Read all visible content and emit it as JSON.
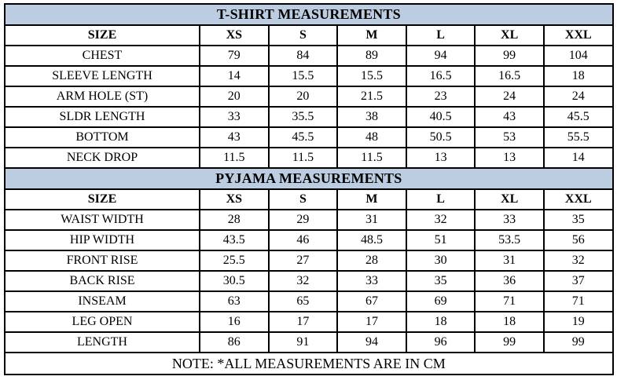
{
  "colors": {
    "header_bg": "#bccde2",
    "border": "#000000",
    "text": "#000000",
    "page_bg": "#ffffff"
  },
  "sections": [
    {
      "title": "T-SHIRT MEASUREMENTS",
      "size_header": [
        "SIZE",
        "XS",
        "S",
        "M",
        "L",
        "XL",
        "XXL"
      ],
      "rows": [
        {
          "label": "CHEST",
          "values": [
            "79",
            "84",
            "89",
            "94",
            "99",
            "104"
          ]
        },
        {
          "label": "SLEEVE LENGTH",
          "values": [
            "14",
            "15.5",
            "15.5",
            "16.5",
            "16.5",
            "18"
          ]
        },
        {
          "label": "ARM HOLE (ST)",
          "values": [
            "20",
            "20",
            "21.5",
            "23",
            "24",
            "24"
          ]
        },
        {
          "label": "SLDR LENGTH",
          "values": [
            "33",
            "35.5",
            "38",
            "40.5",
            "43",
            "45.5"
          ]
        },
        {
          "label": "BOTTOM",
          "values": [
            "43",
            "45.5",
            "48",
            "50.5",
            "53",
            "55.5"
          ]
        },
        {
          "label": "NECK DROP",
          "values": [
            "11.5",
            "11.5",
            "11.5",
            "13",
            "13",
            "14"
          ]
        }
      ]
    },
    {
      "title": "PYJAMA MEASUREMENTS",
      "size_header": [
        "SIZE",
        "XS",
        "S",
        "M",
        "L",
        "XL",
        "XXL"
      ],
      "rows": [
        {
          "label": "WAIST WIDTH",
          "values": [
            "28",
            "29",
            "31",
            "32",
            "33",
            "35"
          ]
        },
        {
          "label": "HIP WIDTH",
          "values": [
            "43.5",
            "46",
            "48.5",
            "51",
            "53.5",
            "56"
          ]
        },
        {
          "label": "FRONT RISE",
          "values": [
            "25.5",
            "27",
            "28",
            "30",
            "31",
            "32"
          ]
        },
        {
          "label": "BACK RISE",
          "values": [
            "30.5",
            "32",
            "33",
            "35",
            "36",
            "37"
          ]
        },
        {
          "label": "INSEAM",
          "values": [
            "63",
            "65",
            "67",
            "69",
            "71",
            "71"
          ]
        },
        {
          "label": "LEG OPEN",
          "values": [
            "16",
            "17",
            "17",
            "18",
            "18",
            "19"
          ]
        },
        {
          "label": "LENGTH",
          "values": [
            "86",
            "91",
            "94",
            "96",
            "99",
            "99"
          ]
        }
      ]
    }
  ],
  "note": "NOTE: *ALL MEASUREMENTS ARE IN CM"
}
